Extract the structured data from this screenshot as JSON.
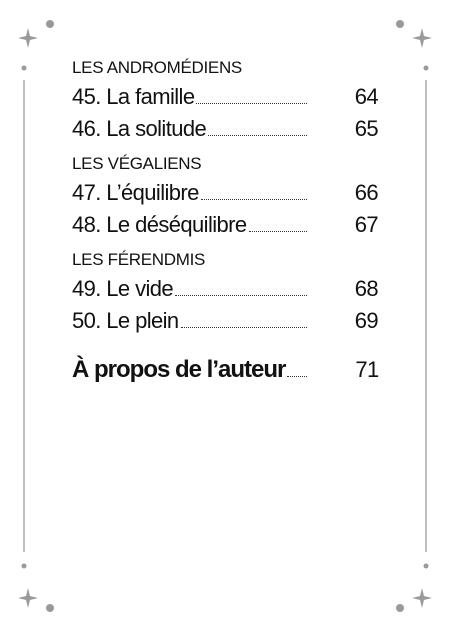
{
  "sections": [
    {
      "heading": "LES ANDROMÉDIENS",
      "entries": [
        {
          "title": "45. La famille",
          "page": "64"
        },
        {
          "title": "46. La solitude",
          "page": "65"
        }
      ]
    },
    {
      "heading": "LES VÉGALIENS",
      "entries": [
        {
          "title": "47. L’équilibre",
          "page": "66"
        },
        {
          "title": "48. Le déséquilibre",
          "page": "67"
        }
      ]
    },
    {
      "heading": "LES FÉRENDMIS",
      "entries": [
        {
          "title": "49. Le vide",
          "page": "68"
        },
        {
          "title": "50. Le plein",
          "page": "69"
        }
      ]
    }
  ],
  "about": {
    "title": "À propos de l’auteur",
    "page": "71"
  }
}
